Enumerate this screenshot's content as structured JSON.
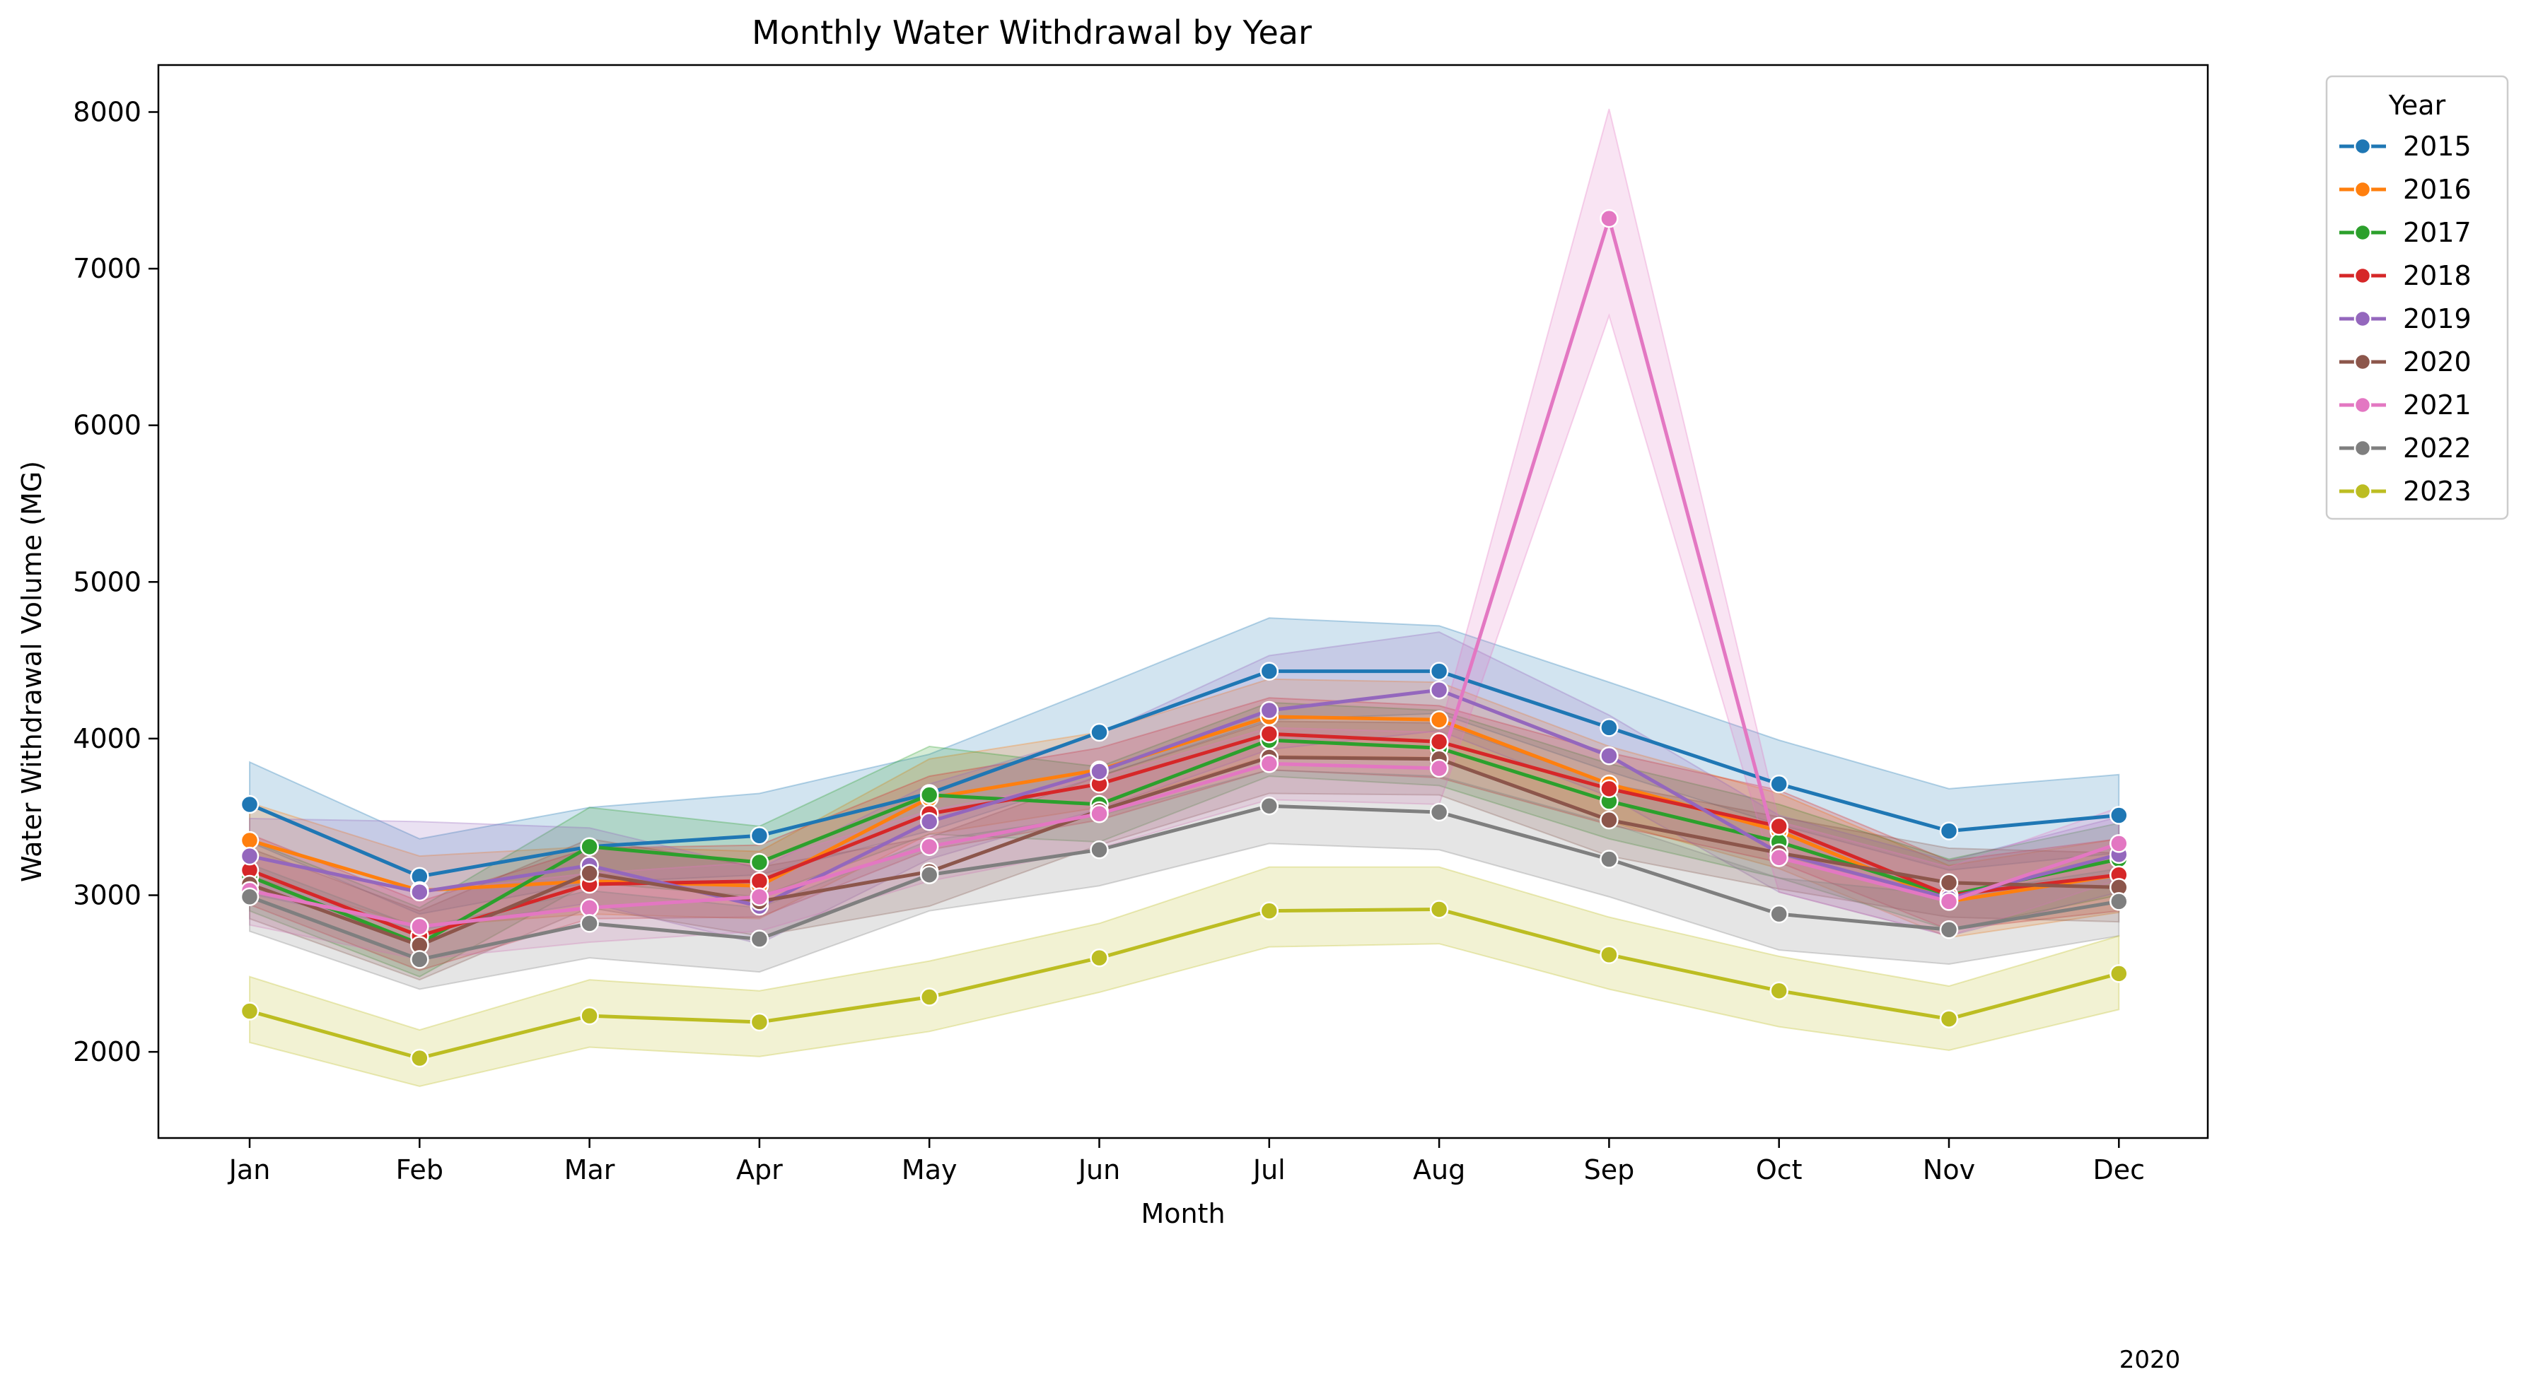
{
  "chart_data": {
    "type": "line",
    "title": "Monthly Water Withdrawal by Year",
    "xlabel": "Month",
    "ylabel": "Water Withdrawal Volume (MG)",
    "categories": [
      "Jan",
      "Feb",
      "Mar",
      "Apr",
      "May",
      "Jun",
      "Jul",
      "Aug",
      "Sep",
      "Oct",
      "Nov",
      "Dec"
    ],
    "ylim": [
      1450,
      8300
    ],
    "yticks": [
      2000,
      3000,
      4000,
      5000,
      6000,
      7000,
      8000
    ],
    "grid": false,
    "legend": {
      "title": "Year",
      "placement": "outside-top-right"
    },
    "footnote": "2020",
    "series": [
      {
        "name": "2015",
        "color": "#1f77b4",
        "values": [
          3580,
          3120,
          3310,
          3380,
          3650,
          4040,
          4430,
          4430,
          4070,
          3710,
          3410,
          3510
        ],
        "lower": [
          3340,
          2880,
          3080,
          3130,
          3410,
          3760,
          4120,
          4160,
          3790,
          3450,
          3160,
          3270
        ],
        "upper": [
          3850,
          3360,
          3560,
          3650,
          3900,
          4330,
          4770,
          4720,
          4360,
          3990,
          3680,
          3770
        ]
      },
      {
        "name": "2016",
        "color": "#ff7f0e",
        "values": [
          3350,
          3030,
          3090,
          3060,
          3620,
          3800,
          4140,
          4120,
          3710,
          3410,
          2960,
          3130
        ],
        "lower": [
          3120,
          2800,
          2880,
          2850,
          3390,
          3560,
          3890,
          3880,
          3470,
          3170,
          2730,
          2890
        ],
        "upper": [
          3590,
          3250,
          3310,
          3280,
          3870,
          4040,
          4380,
          4360,
          3950,
          3650,
          3190,
          3360
        ]
      },
      {
        "name": "2017",
        "color": "#2ca02c",
        "values": [
          3120,
          2690,
          3310,
          3210,
          3640,
          3580,
          3990,
          3940,
          3600,
          3340,
          3000,
          3230
        ],
        "lower": [
          2900,
          2480,
          3080,
          2990,
          3390,
          3340,
          3760,
          3700,
          3360,
          3110,
          2780,
          3000
        ],
        "upper": [
          3350,
          2920,
          3560,
          3440,
          3950,
          3820,
          4230,
          4180,
          3840,
          3580,
          3230,
          3460
        ]
      },
      {
        "name": "2018",
        "color": "#d62728",
        "values": [
          3160,
          2740,
          3070,
          3090,
          3520,
          3710,
          4030,
          3980,
          3680,
          3440,
          3000,
          3130
        ],
        "lower": [
          2940,
          2520,
          2850,
          2860,
          3290,
          3480,
          3800,
          3750,
          3450,
          3210,
          2780,
          2900
        ],
        "upper": [
          3390,
          2960,
          3300,
          3320,
          3760,
          3940,
          4260,
          4210,
          3910,
          3670,
          3220,
          3360
        ]
      },
      {
        "name": "2019",
        "color": "#9467bd",
        "values": [
          3250,
          3020,
          3190,
          2930,
          3470,
          3790,
          4180,
          4310,
          3890,
          3270,
          2980,
          3260
        ],
        "lower": [
          3010,
          2780,
          2950,
          2690,
          3230,
          3550,
          3930,
          4050,
          3630,
          3020,
          2740,
          3020
        ],
        "upper": [
          3490,
          3470,
          3430,
          3170,
          3710,
          4030,
          4530,
          4680,
          4150,
          3510,
          3220,
          3500
        ]
      },
      {
        "name": "2020",
        "color": "#8c564b",
        "values": [
          3070,
          2680,
          3140,
          2960,
          3150,
          3540,
          3880,
          3870,
          3480,
          3270,
          3080,
          3050
        ],
        "lower": [
          2850,
          2460,
          2920,
          2740,
          2930,
          3320,
          3650,
          3640,
          3250,
          3040,
          2860,
          2830
        ],
        "upper": [
          3300,
          2900,
          3360,
          3180,
          3370,
          3760,
          4110,
          4100,
          3710,
          3500,
          3300,
          3270
        ]
      },
      {
        "name": "2021",
        "color": "#e377c2",
        "values": [
          3030,
          2800,
          2920,
          2990,
          3310,
          3520,
          3840,
          3810,
          7320,
          3240,
          2960,
          3330
        ],
        "lower": [
          2810,
          2590,
          2700,
          2770,
          3090,
          3300,
          3610,
          3580,
          6700,
          3020,
          2740,
          3100
        ],
        "upper": [
          3260,
          3020,
          3140,
          3210,
          3540,
          3750,
          4070,
          4040,
          8020,
          3470,
          3180,
          3560
        ]
      },
      {
        "name": "2022",
        "color": "#7f7f7f",
        "values": [
          2990,
          2590,
          2820,
          2720,
          3130,
          3290,
          3570,
          3530,
          3230,
          2880,
          2780,
          2960
        ],
        "lower": [
          2770,
          2400,
          2600,
          2510,
          2900,
          3060,
          3330,
          3290,
          2990,
          2650,
          2560,
          2740
        ],
        "upper": [
          3200,
          2790,
          3030,
          2920,
          3350,
          3510,
          3800,
          3760,
          3460,
          3110,
          3000,
          3170
        ]
      },
      {
        "name": "2023",
        "color": "#bcbd22",
        "values": [
          2260,
          1960,
          2230,
          2190,
          2350,
          2600,
          2900,
          2910,
          2620,
          2390,
          2210,
          2500
        ],
        "lower": [
          2060,
          1780,
          2030,
          1970,
          2130,
          2380,
          2670,
          2690,
          2400,
          2160,
          2010,
          2270
        ],
        "upper": [
          2480,
          2140,
          2460,
          2390,
          2580,
          2820,
          3180,
          3180,
          2860,
          2610,
          2420,
          2740
        ]
      }
    ]
  }
}
